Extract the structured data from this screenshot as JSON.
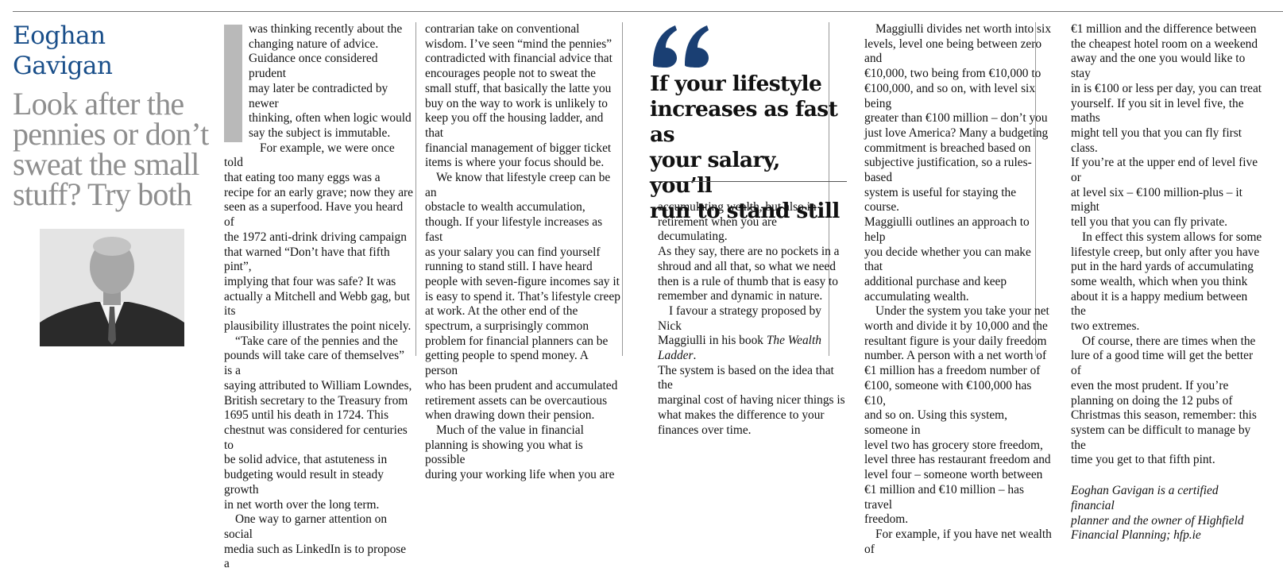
{
  "byline": {
    "line1": "Eoghan",
    "line2": "Gavigan"
  },
  "headline": {
    "line1": "Look after the",
    "line2": "pennies or don’t",
    "line3": "sweat the small",
    "line4": "stuff? Try both"
  },
  "pullquote": {
    "line1": "If your lifestyle",
    "line2": "increases as fast as",
    "line3": "your salary, you’ll",
    "line4": "run to stand still"
  },
  "colors": {
    "byline": "#1a4f8a",
    "headline": "#8e8e8e",
    "quote_mark": "#1a3f73"
  },
  "icons": {
    "quote_mark": "double-quote-icon"
  },
  "col1": [
    [
      "was thinking recently about the",
      "changing nature of advice.",
      "Guidance once considered prudent",
      "may later be contradicted by newer",
      "thinking, often when logic would",
      "say the subject is immutable."
    ],
    [
      "For example, we were once told",
      "that eating too many eggs was a",
      "recipe for an early grave; now they are",
      "seen as a superfood. Have you heard of",
      "the 1972 anti-drink driving campaign",
      "that warned “Don’t have that fifth pint”,",
      "implying that four was safe? It was",
      "actually a Mitchell and Webb gag, but its",
      "plausibility illustrates the point nicely."
    ],
    [
      "“Take care of the pennies and the",
      "pounds will take care of themselves” is a",
      "saying attributed to William Lowndes,",
      "British secretary to the Treasury from",
      "1695 until his death in 1724. This",
      "chestnut was considered for centuries to",
      "be solid advice, that astuteness in",
      "budgeting would result in steady growth",
      "in net worth over the long term."
    ],
    [
      "One way to garner attention on social",
      "media such as LinkedIn is to propose a"
    ]
  ],
  "col2": [
    [
      "contrarian take on conventional",
      "wisdom. I’ve seen “mind the pennies”",
      "contradicted with financial advice that",
      "encourages people not to sweat the",
      "small stuff, that basically the latte you",
      "buy on the way to work is unlikely to",
      "keep you off the housing ladder, and that",
      "financial management of bigger ticket",
      "items is where your focus should be."
    ],
    [
      "We know that lifestyle creep can be an",
      "obstacle to wealth accumulation,",
      "though. If your lifestyle increases as fast",
      "as your salary you can find yourself",
      "running to stand still. I have heard",
      "people with seven-figure incomes say it",
      "is easy to spend it. That’s lifestyle creep",
      "at work. At the other end of the",
      "spectrum, a surprisingly common",
      "problem for financial planners can be",
      "getting people to spend money. A person",
      "who has been prudent and accumulated",
      "retirement assets can be overcautious",
      "when drawing down their pension."
    ],
    [
      "Much of the value in financial",
      "planning is showing you what is possible",
      "during your working life when you are"
    ]
  ],
  "col3": [
    [
      "accumulating wealth, but also in",
      "retirement when you are decumulating.",
      "As they say, there are no pockets in a",
      "shroud and all that, so what we need",
      "then is a rule of thumb that is easy to",
      "remember and dynamic in nature."
    ],
    [
      "I favour a strategy proposed by Nick",
      "Maggiulli in his book The Wealth Ladder.",
      "The system is based on the idea that the",
      "marginal cost of having nicer things is",
      "what makes the difference to your",
      "finances over time."
    ]
  ],
  "col4": [
    [
      "Maggiulli divides net worth into six",
      "levels, level one being between zero and",
      "€10,000, two being from €10,000 to",
      "€100,000, and so on, with level six being",
      "greater than €100 million – don’t you",
      "just love America? Many a budgeting",
      "commitment is breached based on",
      "subjective justification, so a rules-based",
      "system is useful for staying the course.",
      "Maggiulli outlines an approach to help",
      "you decide whether you can make that",
      "additional purchase and keep",
      "accumulating wealth."
    ],
    [
      "Under the system you take your net",
      "worth and divide it by 10,000 and the",
      "resultant figure is your daily freedom",
      "number. A person with a net worth of",
      "€1 million has a freedom number of",
      "€100, someone with €100,000 has €10,",
      "and so on. Using this system, someone in",
      "level two has grocery store freedom,",
      "level three has restaurant freedom and",
      "level four – someone worth between",
      "€1 million and €10 million – has travel",
      "freedom."
    ],
    [
      "For example, if you have net wealth of"
    ]
  ],
  "col5": [
    [
      "€1 million and the difference between",
      "the cheapest hotel room on a weekend",
      "away and the one you would like to stay",
      "in is €100 or less per day, you can treat",
      "yourself. If you sit in level five, the maths",
      "might tell you that you can fly first class.",
      "If you’re at the upper end of level five or",
      "at level six – €100 million-plus – it might",
      "tell you that you can fly private."
    ],
    [
      "In effect this system allows for some",
      "lifestyle creep, but only after you have",
      "put in the hard yards of accumulating",
      "some wealth, which when you think",
      "about it is a happy medium between the",
      "two extremes."
    ],
    [
      "Of course, there are times when the",
      "lure of a good time will get the better of",
      "even the most prudent. If you’re",
      "planning on doing the 12 pubs of",
      "Christmas this season, remember: this",
      "system can be difficult to manage by the",
      "time you get to that fifth pint."
    ]
  ],
  "signature": [
    "Eoghan Gavigan is a certified financial",
    "planner and the owner of Highfield",
    "Financial Planning; hfp.ie"
  ]
}
